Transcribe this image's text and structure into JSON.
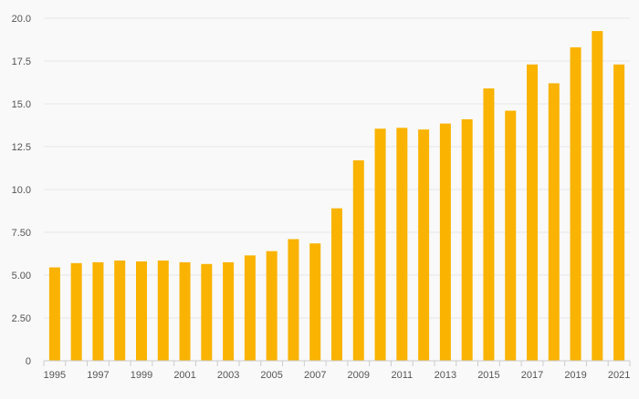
{
  "chart_data": {
    "type": "bar",
    "categories": [
      "1995",
      "1996",
      "1997",
      "1998",
      "1999",
      "2000",
      "2001",
      "2002",
      "2003",
      "2004",
      "2005",
      "2006",
      "2007",
      "2008",
      "2009",
      "2010",
      "2011",
      "2012",
      "2013",
      "2014",
      "2015",
      "2016",
      "2017",
      "2018",
      "2019",
      "2020",
      "2021"
    ],
    "values": [
      5.45,
      5.7,
      5.75,
      5.85,
      5.8,
      5.85,
      5.75,
      5.65,
      5.75,
      6.15,
      6.4,
      7.1,
      6.85,
      8.9,
      11.7,
      13.55,
      13.6,
      13.5,
      13.85,
      14.1,
      15.9,
      14.6,
      17.3,
      16.2,
      18.3,
      19.25,
      17.3
    ],
    "x_tick_labels": [
      "1995",
      "1997",
      "1999",
      "2001",
      "2003",
      "2005",
      "2007",
      "2009",
      "2011",
      "2013",
      "2015",
      "2017",
      "2019",
      "2021"
    ],
    "y_tick_labels": [
      "0",
      "2.50",
      "5.00",
      "7.50",
      "10.0",
      "12.5",
      "15.0",
      "17.5",
      "20.0"
    ],
    "y_ticks": [
      0,
      2.5,
      5,
      7.5,
      10,
      12.5,
      15,
      17.5,
      20
    ],
    "ylim": [
      0,
      20
    ],
    "title": "",
    "xlabel": "",
    "ylabel": "",
    "grid": true,
    "legend": "none",
    "colors": {
      "bar": "#f9b300",
      "grid": "#e6e6e6",
      "axis": "#cccccc",
      "text": "#555555",
      "background": "#f9f9f9"
    }
  }
}
